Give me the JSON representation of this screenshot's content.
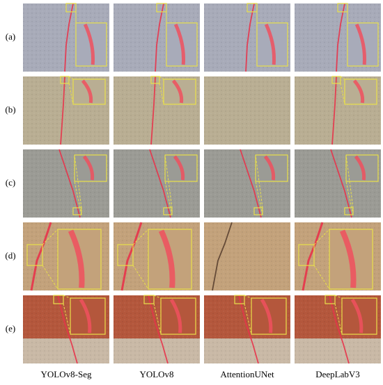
{
  "row_labels": [
    "(a)",
    "(b)",
    "(c)",
    "(d)",
    "(e)"
  ],
  "column_labels": [
    "YOLOv8-Seg",
    "YOLOv8",
    "AttentionUNet",
    "DeepLabV3"
  ]
}
